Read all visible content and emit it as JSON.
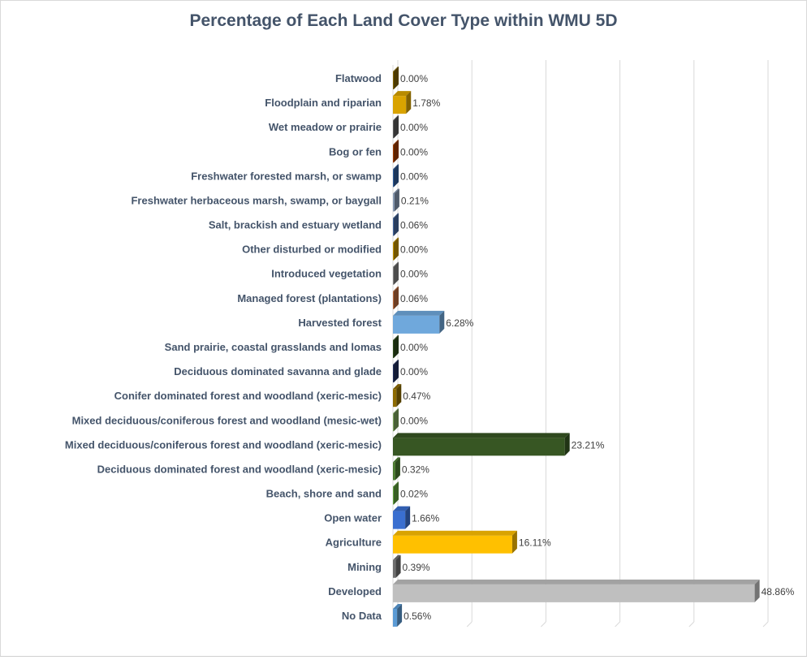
{
  "chart_data": {
    "type": "bar",
    "orientation": "horizontal",
    "style": "3d",
    "title": "Percentage of Each Land Cover Type within WMU 5D",
    "xlabel": "",
    "ylabel": "",
    "xlim": [
      0,
      50
    ],
    "grid": true,
    "legend": "none",
    "categories": [
      "Flatwood",
      "Floodplain and riparian",
      "Wet meadow or prairie",
      "Bog or fen",
      "Freshwater forested  marsh, or swamp",
      "Freshwater herbaceous marsh, swamp, or baygall",
      "Salt, brackish and estuary wetland",
      "Other disturbed or modified",
      "Introduced vegetation",
      "Managed forest (plantations)",
      "Harvested forest",
      "Sand prairie, coastal grasslands and lomas",
      "Deciduous dominated savanna and glade",
      "Conifer dominated forest and woodland (xeric-mesic)",
      "Mixed deciduous/coniferous forest and woodland (mesic-wet)",
      "Mixed deciduous/coniferous forest and woodland  (xeric-mesic)",
      "Deciduous dominated forest and woodland (xeric-mesic)",
      "Beach, shore and sand",
      "Open water",
      "Agriculture",
      "Mining",
      "Developed",
      "No Data"
    ],
    "values": [
      0.0,
      1.78,
      0.0,
      0.0,
      0.0,
      0.21,
      0.06,
      0.0,
      0.0,
      0.06,
      6.28,
      0.0,
      0.0,
      0.47,
      0.0,
      23.21,
      0.32,
      0.02,
      1.66,
      16.11,
      0.39,
      48.86,
      0.56
    ],
    "data_labels": [
      "0.00%",
      "1.78%",
      "0.00%",
      "0.00%",
      "0.00%",
      "0.21%",
      "0.06%",
      "0.00%",
      "0.00%",
      "0.06%",
      "6.28%",
      "0.00%",
      "0.00%",
      "0.47%",
      "0.00%",
      "23.21%",
      "0.32%",
      "0.02%",
      "1.66%",
      "16.11%",
      "0.39%",
      "48.86%",
      "0.56%"
    ],
    "colors": [
      "#7f6000",
      "#d9a300",
      "#595959",
      "#9e3b00",
      "#2e5c9a",
      "#8496b0",
      "#44679e",
      "#bf9000",
      "#7f7f7f",
      "#b8683a",
      "#6fa8dc",
      "#2c4a1a",
      "#1f2d5a",
      "#8c6a00",
      "#7aa05a",
      "#375623",
      "#4a7a2e",
      "#5e9e3a",
      "#3a6fd0",
      "#ffc000",
      "#6e6e6e",
      "#bfbfbf",
      "#5b9bd5"
    ]
  }
}
